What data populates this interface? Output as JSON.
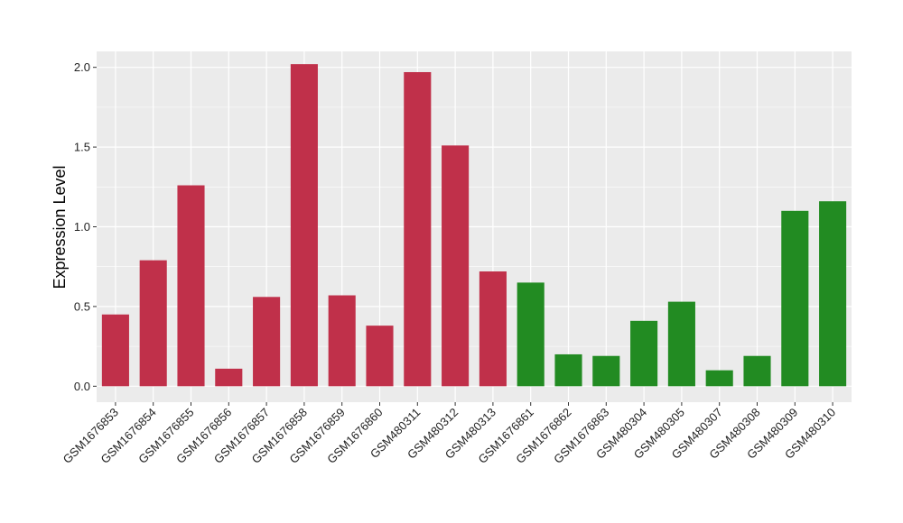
{
  "chart_data": {
    "type": "bar",
    "title": "",
    "xlabel": "",
    "ylabel": "Expression Level",
    "ylim": [
      -0.1,
      2.1
    ],
    "yticks": [
      "0.0",
      "0.5",
      "1.0",
      "1.5",
      "2.0"
    ],
    "grid": true,
    "categories": [
      "GSM1676853",
      "GSM1676854",
      "GSM1676855",
      "GSM1676856",
      "GSM1676857",
      "GSM1676858",
      "GSM1676859",
      "GSM1676860",
      "GSM480311",
      "GSM480312",
      "GSM480313",
      "GSM1676861",
      "GSM1676862",
      "GSM1676863",
      "GSM480304",
      "GSM480305",
      "GSM480307",
      "GSM480308",
      "GSM480309",
      "GSM480310"
    ],
    "values": [
      0.45,
      0.79,
      1.26,
      0.11,
      0.56,
      2.02,
      0.57,
      0.38,
      1.97,
      1.51,
      0.72,
      0.65,
      0.2,
      0.19,
      0.41,
      0.53,
      0.1,
      0.19,
      1.1,
      1.16
    ],
    "bar_colors": [
      "#c0304a",
      "#c0304a",
      "#c0304a",
      "#c0304a",
      "#c0304a",
      "#c0304a",
      "#c0304a",
      "#c0304a",
      "#c0304a",
      "#c0304a",
      "#c0304a",
      "#228b22",
      "#228b22",
      "#228b22",
      "#228b22",
      "#228b22",
      "#228b22",
      "#228b22",
      "#228b22",
      "#228b22"
    ],
    "panel_background": "#ebebeb",
    "gridline_color": "#ffffff"
  }
}
